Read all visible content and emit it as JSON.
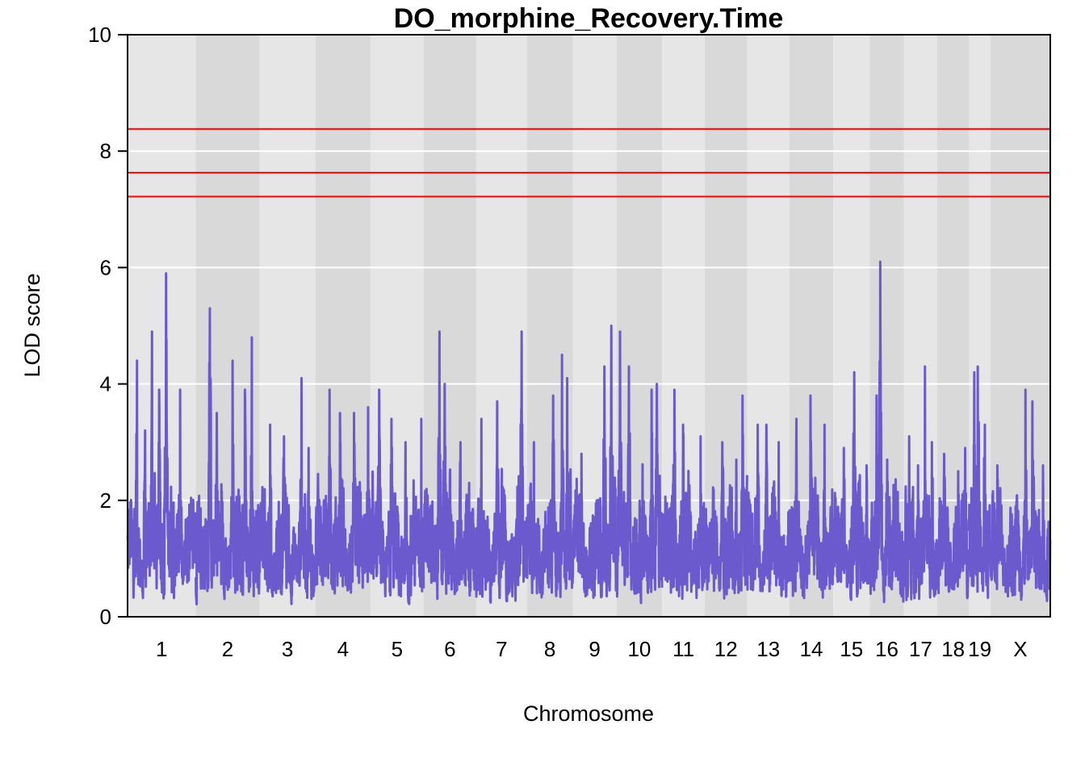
{
  "chart_data": {
    "type": "line",
    "title": "DO_morphine_Recovery.Time",
    "xlabel": "Chromosome",
    "ylabel": "LOD score",
    "ylim": [
      0,
      10
    ],
    "yticks": [
      "0",
      "2",
      "4",
      "6",
      "8",
      "10"
    ],
    "grid": true,
    "colors": {
      "line": "#6a5acd",
      "threshold": "#ff0000",
      "band_light": "#e6e6e6",
      "band_dark": "#d9d9d9",
      "gridline": "#ffffff"
    },
    "thresholds": [
      8.38,
      7.63,
      7.22
    ],
    "chromosomes": [
      {
        "label": "1",
        "start": 0.0,
        "end": 195.0,
        "peaks": [
          [
            27,
            4.4
          ],
          [
            50,
            3.2
          ],
          [
            70,
            4.9
          ],
          [
            90,
            3.9
          ],
          [
            110,
            5.9
          ],
          [
            150,
            3.9
          ]
        ]
      },
      {
        "label": "2",
        "start": 195.0,
        "end": 377.0,
        "peaks": [
          [
            40,
            5.3
          ],
          [
            60,
            3.5
          ],
          [
            105,
            4.4
          ],
          [
            140,
            3.9
          ],
          [
            160,
            4.8
          ]
        ]
      },
      {
        "label": "3",
        "start": 377.0,
        "end": 537.0,
        "peaks": [
          [
            30,
            3.3
          ],
          [
            70,
            3.1
          ],
          [
            120,
            4.1
          ],
          [
            140,
            2.9
          ]
        ]
      },
      {
        "label": "4",
        "start": 537.0,
        "end": 694.0,
        "peaks": [
          [
            40,
            3.9
          ],
          [
            70,
            3.5
          ],
          [
            110,
            3.5
          ],
          [
            150,
            3.6
          ]
        ]
      },
      {
        "label": "5",
        "start": 694.0,
        "end": 846.0,
        "peaks": [
          [
            25,
            3.9
          ],
          [
            60,
            3.4
          ],
          [
            100,
            3.0
          ],
          [
            145,
            3.4
          ]
        ]
      },
      {
        "label": "6",
        "start": 846.0,
        "end": 996.0,
        "peaks": [
          [
            45,
            4.9
          ],
          [
            60,
            4.0
          ],
          [
            105,
            3.0
          ],
          [
            130,
            2.3
          ]
        ]
      },
      {
        "label": "7",
        "start": 996.0,
        "end": 1141.0,
        "peaks": [
          [
            15,
            3.4
          ],
          [
            60,
            3.7
          ],
          [
            130,
            4.9
          ]
        ]
      },
      {
        "label": "8",
        "start": 1141.0,
        "end": 1272.0,
        "peaks": [
          [
            20,
            3.0
          ],
          [
            75,
            3.8
          ],
          [
            100,
            4.5
          ],
          [
            115,
            4.1
          ]
        ]
      },
      {
        "label": "9",
        "start": 1272.0,
        "end": 1397.0,
        "peaks": [
          [
            25,
            2.8
          ],
          [
            90,
            4.3
          ],
          [
            110,
            5.0
          ]
        ]
      },
      {
        "label": "10",
        "start": 1397.0,
        "end": 1527.0,
        "peaks": [
          [
            10,
            4.9
          ],
          [
            35,
            4.3
          ],
          [
            100,
            3.9
          ],
          [
            115,
            4.0
          ]
        ]
      },
      {
        "label": "11",
        "start": 1527.0,
        "end": 1649.0,
        "peaks": [
          [
            35,
            3.9
          ],
          [
            60,
            3.3
          ],
          [
            110,
            3.1
          ]
        ]
      },
      {
        "label": "12",
        "start": 1649.0,
        "end": 1770.0,
        "peaks": [
          [
            50,
            3.0
          ],
          [
            90,
            2.7
          ],
          [
            108,
            3.8
          ]
        ]
      },
      {
        "label": "13",
        "start": 1770.0,
        "end": 1891.0,
        "peaks": [
          [
            30,
            3.3
          ],
          [
            55,
            3.3
          ],
          [
            90,
            3.0
          ]
        ]
      },
      {
        "label": "14",
        "start": 1891.0,
        "end": 2016.0,
        "peaks": [
          [
            20,
            3.4
          ],
          [
            60,
            3.8
          ],
          [
            100,
            3.3
          ]
        ]
      },
      {
        "label": "15",
        "start": 2016.0,
        "end": 2120.0,
        "peaks": [
          [
            30,
            2.9
          ],
          [
            60,
            4.2
          ],
          [
            95,
            2.6
          ]
        ]
      },
      {
        "label": "16",
        "start": 2120.0,
        "end": 2218.0,
        "peaks": [
          [
            20,
            3.8
          ],
          [
            30,
            6.1
          ],
          [
            50,
            2.7
          ],
          [
            85,
            1.6
          ]
        ]
      },
      {
        "label": "17",
        "start": 2218.0,
        "end": 2313.0,
        "peaks": [
          [
            15,
            3.1
          ],
          [
            40,
            2.6
          ],
          [
            60,
            4.3
          ],
          [
            80,
            3.0
          ]
        ]
      },
      {
        "label": "18",
        "start": 2313.0,
        "end": 2404.0,
        "peaks": [
          [
            20,
            2.8
          ],
          [
            60,
            2.5
          ],
          [
            80,
            2.9
          ]
        ]
      },
      {
        "label": "19",
        "start": 2404.0,
        "end": 2465.0,
        "peaks": [
          [
            15,
            4.2
          ],
          [
            25,
            4.3
          ],
          [
            45,
            3.3
          ]
        ]
      },
      {
        "label": "X",
        "start": 2465.0,
        "end": 2636.0,
        "peaks": [
          [
            20,
            2.6
          ],
          [
            100,
            3.9
          ],
          [
            120,
            3.7
          ],
          [
            150,
            2.6
          ]
        ]
      }
    ]
  }
}
